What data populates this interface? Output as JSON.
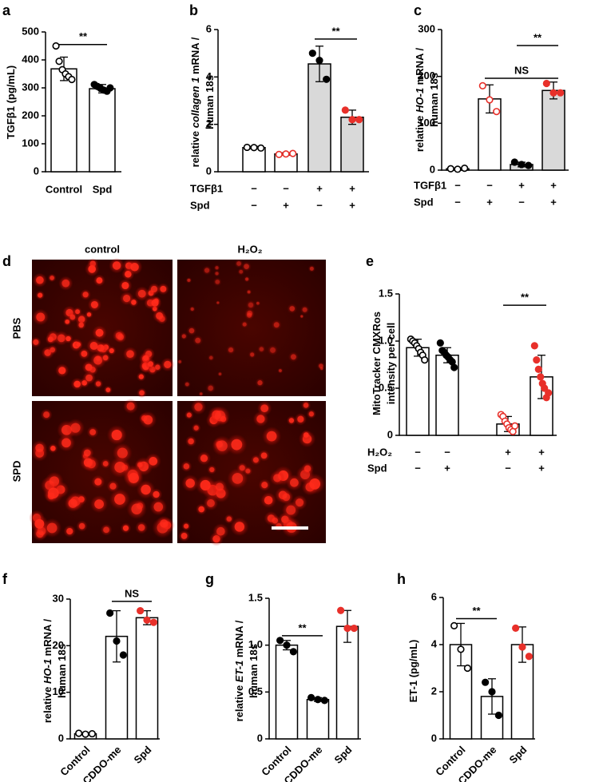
{
  "chart_data": [
    {
      "panel": "a",
      "type": "bar",
      "ylabel_lines": [
        [
          {
            "text": "TGFβ1 (pg/mL)"
          }
        ]
      ],
      "categories": [
        "Control",
        "Spd"
      ],
      "values": [
        368,
        297
      ],
      "errors": [
        42,
        15
      ],
      "points": [
        [
          450,
          395,
          365,
          350,
          340,
          330
        ],
        [
          312,
          305,
          298,
          292,
          288,
          300
        ]
      ],
      "bar_fill": [
        "#ffffff",
        "#ffffff"
      ],
      "point_color": [
        "#000000",
        "#000000"
      ],
      "point_open": [
        true,
        false
      ],
      "ylim": [
        0,
        500
      ],
      "yticks": [
        0,
        100,
        200,
        300,
        400,
        500
      ],
      "annotations": [
        {
          "text": "**",
          "y": 455,
          "span": [
            0,
            1
          ]
        }
      ]
    },
    {
      "panel": "b",
      "type": "bar",
      "ylabel_lines": [
        [
          {
            "text": "relative "
          },
          {
            "text": "collagen 1",
            "style": "italic"
          },
          {
            "text": " mRNA /"
          }
        ],
        [
          {
            "text": "human 18s"
          }
        ]
      ],
      "conditions": [
        {
          "label": "TGFβ1",
          "signs": [
            "−",
            "−",
            "+",
            "+"
          ]
        },
        {
          "label": "Spd",
          "signs": [
            "−",
            "+",
            "−",
            "+"
          ]
        }
      ],
      "values": [
        1.02,
        0.75,
        4.55,
        2.3
      ],
      "errors": [
        0.05,
        0.05,
        0.75,
        0.3
      ],
      "points": [
        [
          1.03,
          1.02,
          1.0
        ],
        [
          0.73,
          0.75,
          0.77
        ],
        [
          5.0,
          4.7,
          3.9
        ],
        [
          2.6,
          2.2,
          2.2
        ]
      ],
      "bar_fill": [
        "#ffffff",
        "#ffffff",
        "#d9d9d9",
        "#d9d9d9"
      ],
      "point_color": [
        "#000000",
        "#e8302a",
        "#000000",
        "#e8302a"
      ],
      "point_open": [
        true,
        true,
        false,
        false
      ],
      "ylim": [
        0,
        6
      ],
      "yticks": [
        0,
        2,
        4,
        6
      ],
      "annotations": [
        {
          "text": "**",
          "y": 5.6,
          "span": [
            2,
            3
          ]
        }
      ]
    },
    {
      "panel": "c",
      "type": "bar",
      "ylabel_lines": [
        [
          {
            "text": "relative "
          },
          {
            "text": "HO-1",
            "style": "italic"
          },
          {
            "text": " mRNA /"
          }
        ],
        [
          {
            "text": "human 18s"
          }
        ]
      ],
      "conditions": [
        {
          "label": "TGFβ1",
          "signs": [
            "−",
            "−",
            "+",
            "+"
          ]
        },
        {
          "label": "Spd",
          "signs": [
            "−",
            "+",
            "−",
            "+"
          ]
        }
      ],
      "values": [
        3,
        152,
        12,
        170
      ],
      "errors": [
        1,
        30,
        5,
        18
      ],
      "points": [
        [
          3,
          2,
          4
        ],
        [
          180,
          150,
          125
        ],
        [
          17,
          12,
          10
        ],
        [
          185,
          165,
          165
        ]
      ],
      "bar_fill": [
        "#ffffff",
        "#ffffff",
        "#d9d9d9",
        "#d9d9d9"
      ],
      "point_color": [
        "#000000",
        "#e8302a",
        "#000000",
        "#e8302a"
      ],
      "point_open": [
        true,
        true,
        false,
        false
      ],
      "ylim": [
        0,
        300
      ],
      "yticks": [
        0,
        100,
        200,
        300
      ],
      "annotations": [
        {
          "text": "NS",
          "y": 196,
          "span": [
            1,
            3
          ]
        },
        {
          "text": "**",
          "y": 266,
          "span": [
            2,
            3
          ]
        }
      ]
    },
    {
      "panel": "e",
      "type": "bar",
      "ylabel_lines": [
        [
          {
            "text": "MitoTracker CMXRos"
          }
        ],
        [
          {
            "text": "intensity per cell"
          }
        ]
      ],
      "conditions": [
        {
          "label": "H₂O₂",
          "signs": [
            "−",
            "−",
            "+",
            "+"
          ]
        },
        {
          "label": "Spd",
          "signs": [
            "−",
            "+",
            "−",
            "+"
          ]
        }
      ],
      "values": [
        0.93,
        0.85,
        0.12,
        0.62
      ],
      "errors": [
        0.09,
        0.08,
        0.08,
        0.23
      ],
      "points": [
        [
          1.02,
          1.0,
          0.98,
          0.95,
          0.92,
          0.88,
          0.85,
          0.8
        ],
        [
          0.98,
          0.9,
          0.88,
          0.85,
          0.83,
          0.8,
          0.78,
          0.72
        ],
        [
          0.22,
          0.2,
          0.15,
          0.12,
          0.08,
          0.06,
          0.04,
          0.1
        ],
        [
          0.95,
          0.8,
          0.7,
          0.62,
          0.55,
          0.5,
          0.4,
          0.45
        ]
      ],
      "bar_fill": [
        "#ffffff",
        "#ffffff",
        "#ffffff",
        "#ffffff"
      ],
      "point_color": [
        "#000000",
        "#000000",
        "#e8302a",
        "#e8302a"
      ],
      "point_open": [
        true,
        false,
        true,
        false
      ],
      "ylim": [
        0,
        1.5
      ],
      "yticks": [
        0,
        0.5,
        {
          "value": 1,
          "label": "1.0"
        },
        1.5
      ],
      "annotations": [
        {
          "text": "**",
          "y": 1.38,
          "span": [
            2,
            3
          ]
        }
      ]
    },
    {
      "panel": "f",
      "type": "bar",
      "ylabel_lines": [
        [
          {
            "text": "relative "
          },
          {
            "text": "HO-1",
            "style": "italic"
          },
          {
            "text": " mRNA /"
          }
        ],
        [
          {
            "text": "human 18s"
          }
        ]
      ],
      "categories": [
        "Control",
        "CDDO-me",
        "Spd"
      ],
      "values": [
        1.1,
        22,
        26
      ],
      "errors": [
        0.2,
        5.5,
        1.5
      ],
      "points": [
        [
          1.2,
          1.0,
          1.1
        ],
        [
          27,
          21,
          18
        ],
        [
          27.5,
          25.5,
          25
        ]
      ],
      "bar_fill": [
        "#ffffff",
        "#ffffff",
        "#ffffff"
      ],
      "point_color": [
        "#000000",
        "#000000",
        "#e8302a"
      ],
      "point_open": [
        true,
        false,
        false
      ],
      "ylim": [
        0,
        30
      ],
      "yticks": [
        0,
        10,
        20,
        30
      ],
      "annotations": [
        {
          "text": "NS",
          "y": 29.5,
          "span": [
            1,
            2
          ]
        }
      ]
    },
    {
      "panel": "g",
      "type": "bar",
      "ylabel_lines": [
        [
          {
            "text": "relative "
          },
          {
            "text": "ET-1",
            "style": "italic"
          },
          {
            "text": " mRNA /"
          }
        ],
        [
          {
            "text": "human 18s"
          }
        ]
      ],
      "categories": [
        "Control",
        "CDDO-me",
        "Spd"
      ],
      "values": [
        1.0,
        0.42,
        1.2
      ],
      "errors": [
        0.05,
        0.02,
        0.17
      ],
      "points": [
        [
          1.05,
          1.0,
          0.93
        ],
        [
          0.44,
          0.42,
          0.41
        ],
        [
          1.37,
          1.18,
          1.18
        ]
      ],
      "bar_fill": [
        "#ffffff",
        "#ffffff",
        "#ffffff"
      ],
      "point_color": [
        "#000000",
        "#000000",
        "#e8302a"
      ],
      "point_open": [
        false,
        false,
        false
      ],
      "ylim": [
        0,
        1.5
      ],
      "yticks": [
        0,
        0.5,
        {
          "value": 1,
          "label": "1.0"
        },
        1.5
      ],
      "annotations": [
        {
          "text": "**",
          "y": 1.1,
          "span": [
            0,
            1
          ]
        }
      ]
    },
    {
      "panel": "h",
      "type": "bar",
      "ylabel_lines": [
        [
          {
            "text": "ET-1 (pg/mL)"
          }
        ]
      ],
      "categories": [
        "Control",
        "CDDO-me",
        "Spd"
      ],
      "values": [
        4.0,
        1.8,
        4.0
      ],
      "errors": [
        0.9,
        0.75,
        0.75
      ],
      "points": [
        [
          4.8,
          3.8,
          3.0
        ],
        [
          2.4,
          2.0,
          1.0
        ],
        [
          4.7,
          3.9,
          3.5
        ]
      ],
      "bar_fill": [
        "#ffffff",
        "#ffffff",
        "#ffffff"
      ],
      "point_color": [
        "#000000",
        "#000000",
        "#e8302a"
      ],
      "point_open": [
        true,
        false,
        false
      ],
      "ylim": [
        0,
        6
      ],
      "yticks": [
        0,
        2,
        4,
        6
      ],
      "annotations": [
        {
          "text": "**",
          "y": 5.1,
          "span": [
            0,
            1
          ]
        }
      ]
    }
  ],
  "micrograph": {
    "panel": "d",
    "columns": [
      "control",
      "H₂O₂"
    ],
    "rows": [
      "PBS",
      "SPD"
    ]
  }
}
